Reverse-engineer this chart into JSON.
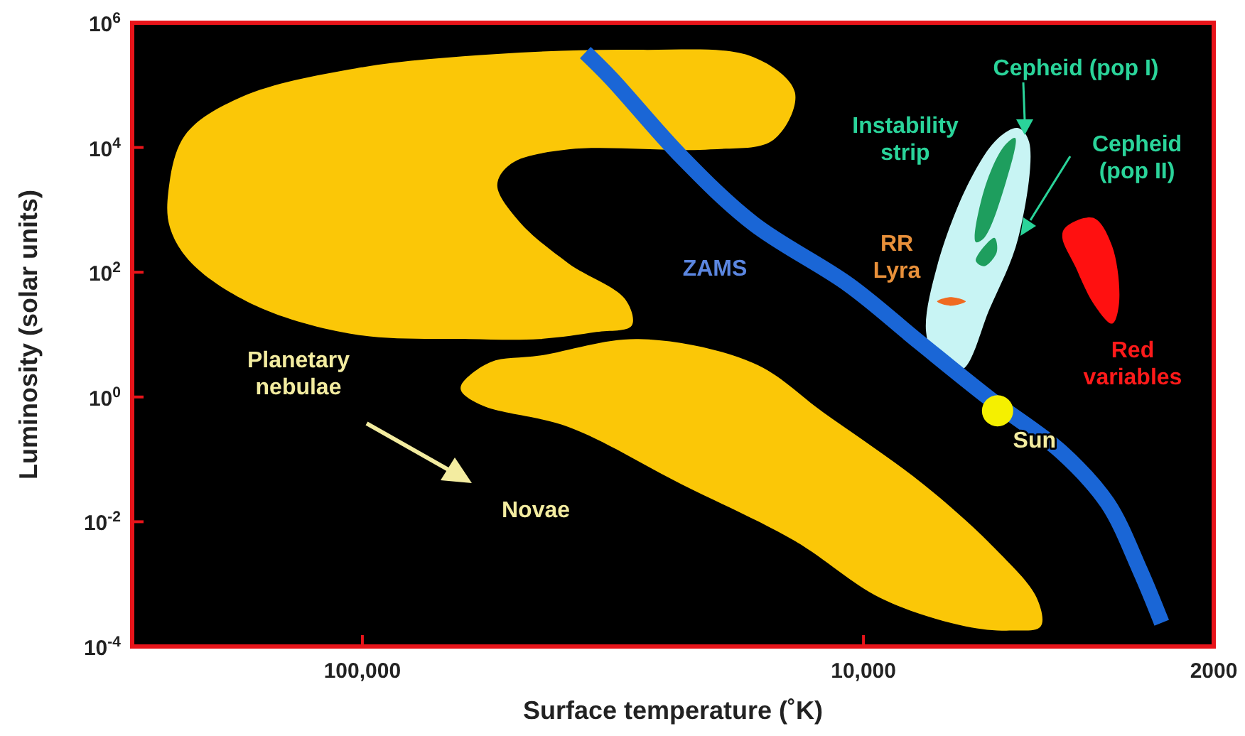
{
  "chart_data": {
    "type": "area",
    "xlabel": "Surface temperature (˚K)",
    "ylabel": "Luminosity (solar units)",
    "log": "xy",
    "xlim": [
      288000,
      2000
    ],
    "ylim": [
      0.0001,
      1000000
    ],
    "xticks": [
      {
        "value": 100000,
        "label": "100,000"
      },
      {
        "value": 10000,
        "label": "10,000"
      },
      2000
    ],
    "yticks": [
      {
        "value": 0.0001,
        "label": "10$^{-4}$"
      },
      {
        "value": 0.01,
        "label": "10$^{-2}$"
      },
      {
        "value": 1,
        "label": "10$^{0}$"
      },
      {
        "value": 100,
        "label": "10$^{2}$"
      },
      {
        "value": 10000,
        "label": "10$^{4}$"
      },
      {
        "value": 1000000,
        "label": "10$^{6}$"
      }
    ],
    "series": [
      {
        "color": "#fbc707",
        "x": [
          244000,
          226000,
          174000,
          103000,
          53800,
          28100,
          16600,
          13700,
          15100,
          20200,
          38800,
          50500,
          53800,
          48800,
          38800,
          29900,
          29000,
          34100,
          44300,
          61400,
          103000,
          163000,
          219000,
          242000
        ],
        "values": [
          1900,
          15700,
          65000,
          186000,
          315000,
          368000,
          283000,
          76000,
          13400,
          9300,
          9300,
          5500,
          2500,
          670,
          139,
          37,
          14,
          11,
          8.5,
          8.5,
          10,
          29,
          139,
          515
        ]
      },
      {
        "color": "#fbc707",
        "x": [
          63400,
          55600,
          44300,
          28100,
          16600,
          12000,
          7600,
          5480,
          4510,
          4430,
          5050,
          6250,
          9250,
          13700,
          23100,
          38800,
          57400,
          63400
        ],
        "values": [
          1.59,
          3.6,
          4.6,
          8.5,
          3.5,
          0.56,
          0.04,
          0.0038,
          0.0006,
          0.00021,
          0.00018,
          0.00021,
          0.0006,
          0.0049,
          0.04,
          0.33,
          0.72,
          1.22
        ]
      },
      {
        "name": "Instability strip",
        "color": "#c8f4f4",
        "x": [
          4910,
          4670,
          4910,
          5600,
          6380,
          7130,
          7500,
          7130,
          6140,
          5380
        ],
        "values": [
          20500,
          12100,
          357,
          26,
          2.7,
          3.9,
          11,
          125,
          2900,
          14200
        ]
      },
      {
        "color": "#1e9e5e",
        "x": [
          4980,
          5250,
          5740,
          5970,
          5740,
          5250
        ],
        "values": [
          14200,
          2130,
          357,
          305,
          2130,
          10300
        ]
      },
      {
        "color": "#1e9e5e",
        "x": [
          5480,
          5420,
          5740,
          5970
        ],
        "values": [
          357,
          211,
          125,
          154
        ]
      },
      {
        "name": "RR Lyra",
        "color": "#f06a20",
        "x": [
          7130,
          6700,
          6250,
          6700
        ],
        "values": [
          34,
          40,
          34,
          29
        ]
      },
      {
        "name": "Red variables",
        "color": "#ff1010",
        "x": [
          3960,
          3480,
          3190,
          3090,
          3190,
          3480,
          3780,
          4010
        ],
        "values": [
          515,
          745,
          261,
          32,
          15,
          32,
          125,
          357
        ]
      },
      {
        "name": "ZAMS",
        "type": "line",
        "color": "#1a66d6",
        "x": [
          35900,
          31900,
          23100,
          16600,
          10700,
          7760,
          5600,
          4040,
          3260,
          2810,
          2540
        ],
        "values": [
          332000,
          129000,
          7150,
          604,
          63,
          7.7,
          0.94,
          0.134,
          0.02,
          0.0017,
          0.00024
        ]
      },
      {
        "type": "scatter",
        "color": "#f5f000",
        "marker": "circle",
        "x": [
          5400
        ],
        "values": [
          0.6
        ]
      }
    ],
    "annotations": [
      "Planetary nebulae",
      "Novae",
      "Cepheid (pop I)",
      "Cepheid (pop II)",
      {
        "text": "Sun",
        "x": 5400,
        "y": 0.6
      }
    ]
  }
}
